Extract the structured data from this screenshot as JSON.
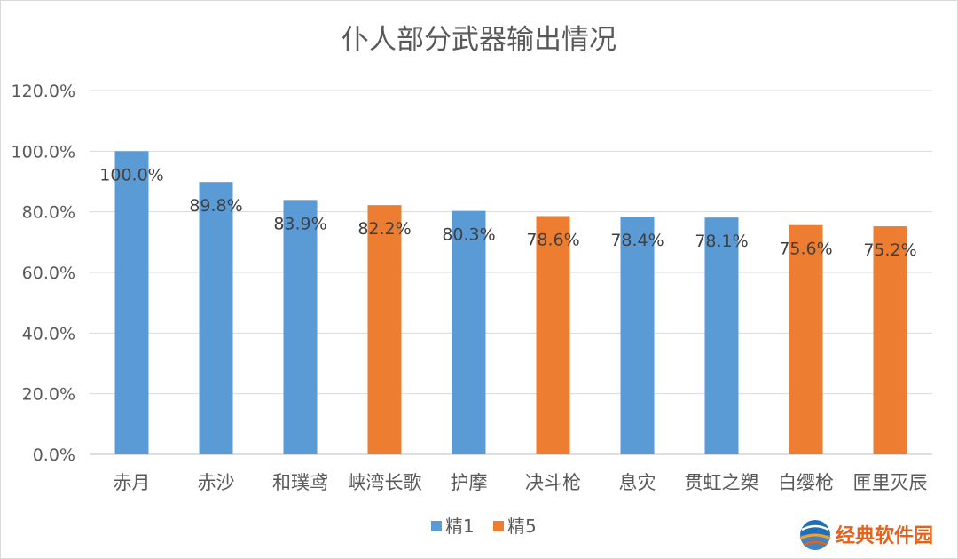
{
  "chart_data": {
    "type": "bar",
    "title": "仆人部分武器输出情况",
    "categories": [
      "赤月",
      "赤沙",
      "和璞鸢",
      "峡湾长歌",
      "护摩",
      "决斗枪",
      "息灾",
      "贯虹之槊",
      "白缨枪",
      "匣里灭辰"
    ],
    "values": [
      100.0,
      89.8,
      83.9,
      82.2,
      80.3,
      78.6,
      78.4,
      78.1,
      75.6,
      75.2
    ],
    "data_labels": [
      "100.0%",
      "89.8%",
      "83.9%",
      "82.2%",
      "80.3%",
      "78.6%",
      "78.4%",
      "78.1%",
      "75.6%",
      "75.2%"
    ],
    "series_of_bar": [
      0,
      0,
      0,
      1,
      0,
      1,
      0,
      0,
      1,
      1
    ],
    "series": [
      {
        "name": "精1",
        "color": "#5b9bd5"
      },
      {
        "name": "精5",
        "color": "#ed7d31"
      }
    ],
    "ylim": [
      0,
      120
    ],
    "yticks": [
      0,
      20,
      40,
      60,
      80,
      100,
      120
    ],
    "ytick_labels": [
      "0.0%",
      "20.0%",
      "40.0%",
      "60.0%",
      "80.0%",
      "100.0%",
      "120.0%"
    ],
    "xlabel": "",
    "ylabel": "",
    "grid": true,
    "legend_position": "bottom"
  },
  "watermark": {
    "text": "经典软件园",
    "icon": "globe-logo-icon"
  }
}
